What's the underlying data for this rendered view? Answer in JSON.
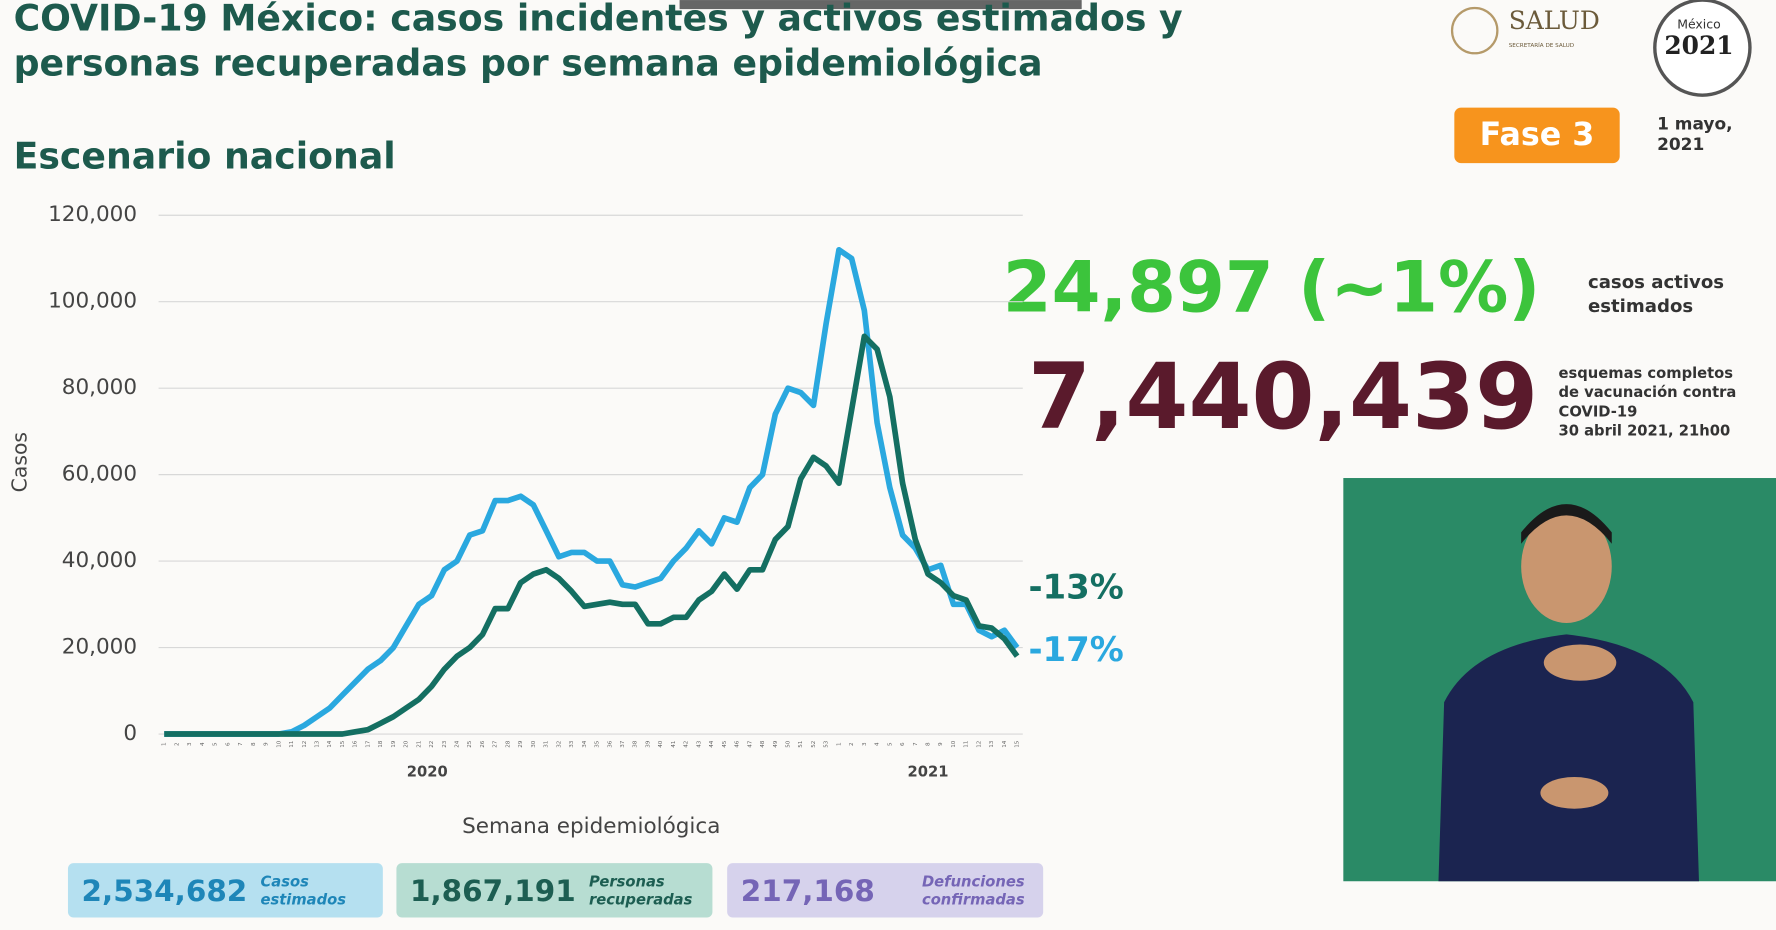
{
  "header": {
    "title_lines": [
      "COVID-19 México: casos incidentes y activos estimados y",
      "personas recuperadas por semana epidemiológica"
    ],
    "subtitle": "Escenario nacional",
    "logo_text": "SALUD",
    "logo_subtext": "SECRETARÍA DE SALUD",
    "badge_lines": [
      "México",
      "2021"
    ],
    "phase": "Fase 3",
    "date_lines": [
      "1 mayo,",
      "2021"
    ]
  },
  "active": {
    "value": "24,897 (~1%)",
    "label_lines": [
      "casos activos",
      "estimados"
    ]
  },
  "vaccination": {
    "value": "7,440,439",
    "label_lines": [
      "esquemas completos",
      "de vacunación contra",
      "COVID-19",
      "30 abril 2021, 21h00"
    ]
  },
  "totals": [
    {
      "value": "2,534,682",
      "label_lines": [
        "Casos",
        "estimados"
      ]
    },
    {
      "value": "1,867,191",
      "label_lines": [
        "Personas",
        "recuperadas"
      ]
    },
    {
      "value": "217,168",
      "label_lines": [
        "Defunciones",
        "confirmadas"
      ]
    }
  ],
  "chart_data": {
    "type": "line",
    "y_label": "Casos",
    "x_label": "Semana epidemiológica",
    "categories": [
      "1",
      "2",
      "3",
      "4",
      "5",
      "6",
      "7",
      "8",
      "9",
      "10",
      "11",
      "12",
      "13",
      "14",
      "15",
      "16",
      "17",
      "18",
      "19",
      "20",
      "21",
      "22",
      "23",
      "24",
      "25",
      "26",
      "27",
      "28",
      "29",
      "30",
      "31",
      "32",
      "33",
      "34",
      "35",
      "36",
      "37",
      "38",
      "39",
      "40",
      "41",
      "42",
      "43",
      "44",
      "45",
      "46",
      "47",
      "48",
      "49",
      "50",
      "51",
      "52",
      "53",
      "1",
      "2",
      "3",
      "4",
      "5",
      "6",
      "7",
      "8",
      "9",
      "10",
      "11",
      "12",
      "13",
      "14",
      "15"
    ],
    "x_groups": [
      {
        "label": "2020",
        "start": 0,
        "end": 52
      },
      {
        "label": "2021",
        "start": 53,
        "end": 67
      }
    ],
    "series": [
      {
        "color": "#2aa8df",
        "values": [
          0,
          0,
          0,
          0,
          0,
          0,
          0,
          0,
          0,
          0,
          500,
          2000,
          4000,
          6000,
          9000,
          12000,
          15000,
          17000,
          20000,
          25000,
          30000,
          32000,
          38000,
          40000,
          46000,
          47000,
          54000,
          54000,
          55000,
          53000,
          47000,
          41000,
          42000,
          42000,
          40000,
          40000,
          34500,
          34000,
          35000,
          36000,
          40000,
          43000,
          47000,
          44000,
          50000,
          49000,
          57000,
          60000,
          74000,
          80000,
          79000,
          76000,
          95000,
          112000,
          110000,
          98000,
          72000,
          57000,
          46000,
          43000,
          38000,
          39000,
          30000,
          30000,
          24000,
          22500,
          24000,
          20000
        ]
      },
      {
        "color": "#146f62",
        "values": [
          0,
          0,
          0,
          0,
          0,
          0,
          0,
          0,
          0,
          0,
          0,
          0,
          0,
          0,
          0,
          500,
          1000,
          2500,
          4000,
          6000,
          8000,
          11000,
          15000,
          18000,
          20000,
          23000,
          29000,
          29000,
          35000,
          37000,
          38000,
          36000,
          33000,
          29500,
          30000,
          30500,
          30000,
          30000,
          25500,
          25500,
          27000,
          27000,
          31000,
          33000,
          37000,
          33500,
          38000,
          38000,
          45000,
          48000,
          59000,
          64000,
          62000,
          58000,
          75000,
          92000,
          89000,
          78000,
          58000,
          45000,
          37000,
          35000,
          32000,
          31000,
          25000,
          24500,
          22000,
          18000
        ]
      }
    ],
    "annotations": [
      {
        "text": "-13%",
        "color": "#146f62"
      },
      {
        "text": "-17%",
        "color": "#2aa8df"
      }
    ],
    "ylim": [
      0,
      120000
    ],
    "yticks": [
      0,
      {
        "value": 20000,
        "label": "20,000"
      },
      {
        "value": 40000,
        "label": "40,000"
      },
      {
        "value": 60000,
        "label": "60,000"
      },
      {
        "value": 80000,
        "label": "80,000"
      },
      {
        "value": 100000,
        "label": "100,000"
      },
      {
        "value": 120000,
        "label": "120,000"
      }
    ],
    "grid": true
  }
}
